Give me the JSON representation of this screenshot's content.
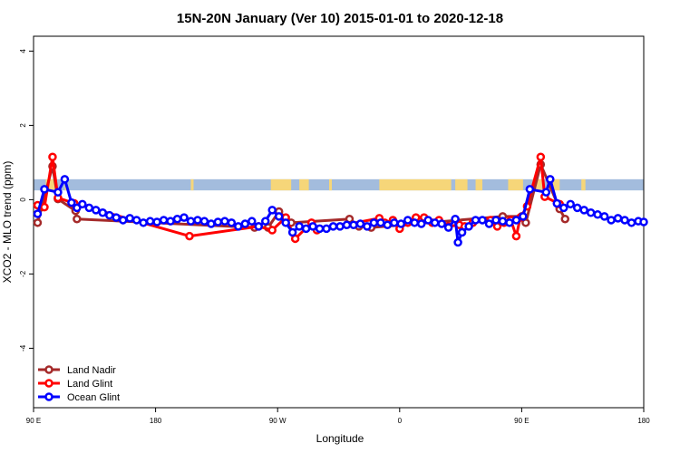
{
  "chart_data": {
    "type": "line",
    "title": "15N-20N January (Ver 10)   2015-01-01 to 2020-12-18",
    "xlabel": "Longitude",
    "ylabel": "XCO2 - MLO trend (ppm)",
    "xlim": [
      90,
      540
    ],
    "ylim": [
      -5.6,
      4.4
    ],
    "x_ticks": [
      {
        "value": 90,
        "label": "90 E"
      },
      {
        "value": 180,
        "label": "180"
      },
      {
        "value": 270,
        "label": "90 W"
      },
      {
        "value": 360,
        "label": "0"
      },
      {
        "value": 450,
        "label": "90 E"
      },
      {
        "value": 540,
        "label": "180"
      }
    ],
    "y_ticks": [
      {
        "value": -4,
        "label": "-4"
      },
      {
        "value": -2,
        "label": "-2"
      },
      {
        "value": 0,
        "label": "0"
      },
      {
        "value": 2,
        "label": "2"
      },
      {
        "value": 4,
        "label": "4"
      }
    ],
    "legend_position": "bottom-left",
    "series": [
      {
        "name": "Land Nadir",
        "color": "#a52a2a",
        "points": [
          [
            93,
            -0.62
          ],
          [
            96,
            -0.2
          ],
          [
            104,
            0.9
          ],
          [
            108,
            0.02
          ],
          [
            121,
            -0.3
          ],
          [
            122,
            -0.52
          ],
          [
            253,
            -0.75
          ],
          [
            263,
            -0.75
          ],
          [
            271,
            -0.32
          ],
          [
            280,
            -0.62
          ],
          [
            323,
            -0.52
          ],
          [
            330,
            -0.72
          ],
          [
            339,
            -0.75
          ],
          [
            436,
            -0.45
          ],
          [
            450,
            -0.45
          ],
          [
            453,
            -0.62
          ],
          [
            464,
            0.95
          ],
          [
            478,
            -0.25
          ],
          [
            482,
            -0.52
          ]
        ]
      },
      {
        "name": "Land Glint",
        "color": "#ff0000",
        "points": [
          [
            93,
            -0.15
          ],
          [
            98,
            -0.2
          ],
          [
            104,
            1.15
          ],
          [
            108,
            0.05
          ],
          [
            120,
            -0.1
          ],
          [
            205,
            -0.98
          ],
          [
            256,
            -0.72
          ],
          [
            266,
            -0.82
          ],
          [
            276,
            -0.48
          ],
          [
            283,
            -1.05
          ],
          [
            295,
            -0.62
          ],
          [
            299,
            -0.82
          ],
          [
            345,
            -0.5
          ],
          [
            349,
            -0.62
          ],
          [
            355,
            -0.55
          ],
          [
            360,
            -0.78
          ],
          [
            366,
            -0.62
          ],
          [
            372,
            -0.48
          ],
          [
            378,
            -0.48
          ],
          [
            384,
            -0.62
          ],
          [
            389,
            -0.55
          ],
          [
            396,
            -0.72
          ],
          [
            404,
            -0.68
          ],
          [
            408,
            -0.72
          ],
          [
            414,
            -0.62
          ],
          [
            427,
            -0.55
          ],
          [
            432,
            -0.72
          ],
          [
            437,
            -0.62
          ],
          [
            442,
            -0.55
          ],
          [
            446,
            -0.98
          ],
          [
            449,
            -0.48
          ],
          [
            454,
            -0.18
          ],
          [
            464,
            1.15
          ],
          [
            467,
            0.08
          ],
          [
            478,
            -0.12
          ]
        ]
      },
      {
        "name": "Ocean Glint",
        "color": "#0000ff",
        "points": [
          [
            93,
            -0.38
          ],
          [
            98,
            0.28
          ],
          [
            108,
            0.2
          ],
          [
            113,
            0.55
          ],
          [
            118,
            -0.08
          ],
          [
            122,
            -0.22
          ],
          [
            126,
            -0.12
          ],
          [
            131,
            -0.22
          ],
          [
            136,
            -0.28
          ],
          [
            141,
            -0.35
          ],
          [
            146,
            -0.42
          ],
          [
            151,
            -0.48
          ],
          [
            156,
            -0.55
          ],
          [
            161,
            -0.5
          ],
          [
            166,
            -0.55
          ],
          [
            171,
            -0.62
          ],
          [
            176,
            -0.58
          ],
          [
            181,
            -0.6
          ],
          [
            186,
            -0.55
          ],
          [
            191,
            -0.58
          ],
          [
            196,
            -0.52
          ],
          [
            201,
            -0.48
          ],
          [
            206,
            -0.58
          ],
          [
            211,
            -0.55
          ],
          [
            216,
            -0.58
          ],
          [
            221,
            -0.65
          ],
          [
            226,
            -0.6
          ],
          [
            231,
            -0.58
          ],
          [
            236,
            -0.62
          ],
          [
            241,
            -0.72
          ],
          [
            246,
            -0.65
          ],
          [
            251,
            -0.58
          ],
          [
            256,
            -0.72
          ],
          [
            261,
            -0.58
          ],
          [
            266,
            -0.28
          ],
          [
            271,
            -0.45
          ],
          [
            276,
            -0.62
          ],
          [
            281,
            -0.88
          ],
          [
            286,
            -0.72
          ],
          [
            291,
            -0.78
          ],
          [
            296,
            -0.72
          ],
          [
            301,
            -0.78
          ],
          [
            306,
            -0.78
          ],
          [
            311,
            -0.72
          ],
          [
            316,
            -0.72
          ],
          [
            321,
            -0.68
          ],
          [
            326,
            -0.68
          ],
          [
            331,
            -0.65
          ],
          [
            336,
            -0.72
          ],
          [
            341,
            -0.62
          ],
          [
            346,
            -0.62
          ],
          [
            351,
            -0.68
          ],
          [
            356,
            -0.62
          ],
          [
            361,
            -0.65
          ],
          [
            366,
            -0.55
          ],
          [
            371,
            -0.62
          ],
          [
            376,
            -0.65
          ],
          [
            381,
            -0.55
          ],
          [
            386,
            -0.62
          ],
          [
            391,
            -0.65
          ],
          [
            396,
            -0.75
          ],
          [
            401,
            -0.52
          ],
          [
            403,
            -1.15
          ],
          [
            406,
            -0.88
          ],
          [
            411,
            -0.72
          ],
          [
            416,
            -0.55
          ],
          [
            421,
            -0.55
          ],
          [
            426,
            -0.65
          ],
          [
            431,
            -0.55
          ],
          [
            436,
            -0.58
          ],
          [
            441,
            -0.62
          ],
          [
            446,
            -0.55
          ],
          [
            451,
            -0.45
          ],
          [
            456,
            0.28
          ],
          [
            468,
            0.2
          ],
          [
            471,
            0.55
          ],
          [
            476,
            -0.1
          ],
          [
            481,
            -0.22
          ],
          [
            486,
            -0.12
          ],
          [
            491,
            -0.22
          ],
          [
            496,
            -0.28
          ],
          [
            501,
            -0.35
          ],
          [
            506,
            -0.4
          ],
          [
            511,
            -0.45
          ],
          [
            516,
            -0.55
          ],
          [
            521,
            -0.5
          ],
          [
            526,
            -0.55
          ],
          [
            531,
            -0.62
          ],
          [
            536,
            -0.58
          ],
          [
            540,
            -0.6
          ]
        ]
      }
    ]
  },
  "map_band": {
    "ocean_color": "#a3bcdd",
    "land_color": "#f6d679",
    "y_range": [
      0.25,
      0.55
    ],
    "land_segments": [
      [
        99,
        107
      ],
      [
        113,
        115
      ],
      [
        206,
        208
      ],
      [
        265,
        280
      ],
      [
        286,
        293
      ],
      [
        308,
        310
      ],
      [
        345,
        398
      ],
      [
        401,
        410
      ],
      [
        416,
        421
      ],
      [
        440,
        451
      ],
      [
        458,
        465
      ],
      [
        470,
        478
      ],
      [
        494,
        497
      ]
    ]
  }
}
